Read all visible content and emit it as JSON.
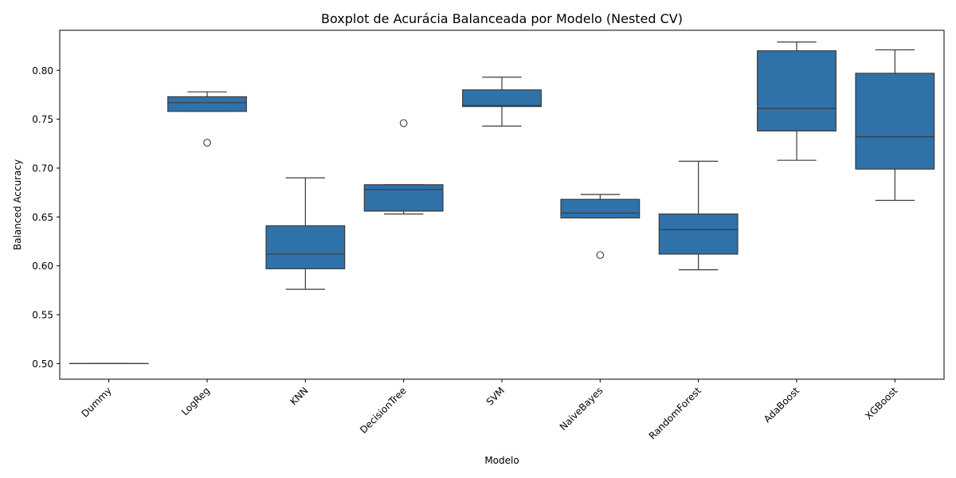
{
  "chart_data": {
    "type": "boxplot",
    "title": "Boxplot de Acurácia Balanceada por Modelo (Nested CV)",
    "xlabel": "Modelo",
    "ylabel": "Balanced Accuracy",
    "ylim": [
      0.484,
      0.841
    ],
    "yticks": [
      0.5,
      0.55,
      0.6,
      0.65,
      0.7,
      0.75,
      0.8
    ],
    "ytick_labels": [
      "0.50",
      "0.55",
      "0.60",
      "0.65",
      "0.70",
      "0.75",
      "0.80"
    ],
    "grid": false,
    "box_color": "#2f72aa",
    "line_color": "#3b3b3b",
    "categories": [
      "Dummy",
      "LogReg",
      "KNN",
      "DecisionTree",
      "SVM",
      "NaiveBayes",
      "RandomForest",
      "AdaBoost",
      "XGBoost"
    ],
    "boxes": [
      {
        "whislo": 0.5,
        "q1": 0.5,
        "med": 0.5,
        "q3": 0.5,
        "whishi": 0.5,
        "fliers": []
      },
      {
        "whislo": 0.758,
        "q1": 0.758,
        "med": 0.767,
        "q3": 0.773,
        "whishi": 0.778,
        "fliers": [
          0.726
        ]
      },
      {
        "whislo": 0.576,
        "q1": 0.597,
        "med": 0.612,
        "q3": 0.641,
        "whishi": 0.69,
        "fliers": []
      },
      {
        "whislo": 0.653,
        "q1": 0.656,
        "med": 0.678,
        "q3": 0.683,
        "whishi": 0.683,
        "fliers": [
          0.746
        ]
      },
      {
        "whislo": 0.743,
        "q1": 0.763,
        "med": 0.764,
        "q3": 0.78,
        "whishi": 0.793,
        "fliers": []
      },
      {
        "whislo": 0.649,
        "q1": 0.649,
        "med": 0.654,
        "q3": 0.668,
        "whishi": 0.673,
        "fliers": [
          0.611
        ]
      },
      {
        "whislo": 0.596,
        "q1": 0.612,
        "med": 0.637,
        "q3": 0.653,
        "whishi": 0.707,
        "fliers": []
      },
      {
        "whislo": 0.708,
        "q1": 0.738,
        "med": 0.761,
        "q3": 0.82,
        "whishi": 0.829,
        "fliers": []
      },
      {
        "whislo": 0.667,
        "q1": 0.699,
        "med": 0.732,
        "q3": 0.797,
        "whishi": 0.821,
        "fliers": []
      }
    ]
  }
}
